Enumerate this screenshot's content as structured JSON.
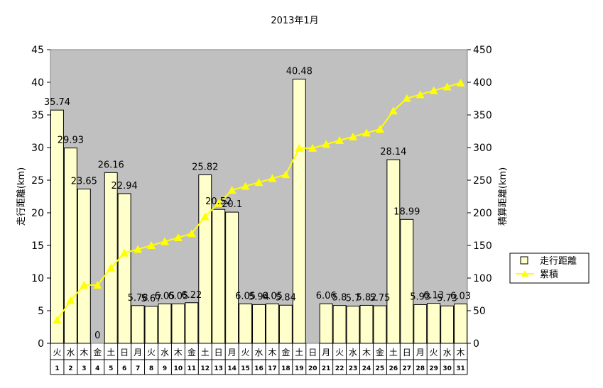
{
  "chart_data": {
    "type": "bar+line",
    "title": "2013年1月",
    "ylabel_left": "走行距離(km)",
    "ylabel_right": "積算距離(km)",
    "ylim_left": [
      0,
      45
    ],
    "ylim_right": [
      0,
      450
    ],
    "yticks_left": [
      "0",
      "5",
      "10",
      "15",
      "20",
      "25",
      "30",
      "35",
      "40",
      "45"
    ],
    "yticks_right": [
      "0",
      "50",
      "100",
      "150",
      "200",
      "250",
      "300",
      "350",
      "400",
      "450"
    ],
    "days": [
      "1",
      "2",
      "3",
      "4",
      "5",
      "6",
      "7",
      "8",
      "9",
      "10",
      "11",
      "12",
      "13",
      "14",
      "15",
      "16",
      "17",
      "18",
      "19",
      "20",
      "21",
      "22",
      "23",
      "24",
      "25",
      "26",
      "27",
      "28",
      "29",
      "30",
      "31"
    ],
    "weekdays": [
      "火",
      "水",
      "木",
      "金",
      "土",
      "日",
      "月",
      "火",
      "水",
      "木",
      "金",
      "土",
      "日",
      "月",
      "火",
      "水",
      "木",
      "金",
      "土",
      "日",
      "月",
      "火",
      "水",
      "木",
      "金",
      "土",
      "日",
      "月",
      "火",
      "水",
      "木"
    ],
    "series": [
      {
        "name": "走行距離",
        "kind": "bar",
        "color": "#ffffcc",
        "values": [
          35.74,
          29.93,
          23.65,
          0,
          26.16,
          22.94,
          5.78,
          5.67,
          6.05,
          6.05,
          6.22,
          25.82,
          20.52,
          20.1,
          6.05,
          5.94,
          6.05,
          5.84,
          40.48,
          null,
          6.06,
          5.8,
          5.7,
          5.82,
          5.75,
          28.14,
          18.99,
          5.93,
          6.13,
          5.73,
          6.03
        ],
        "labels": [
          "35.74",
          "29.93",
          "23.65",
          "0",
          "26.16",
          "22.94",
          "5.78",
          "5.67",
          "6.05",
          "6.05",
          "6.22",
          "25.82",
          "20.52",
          "20.1",
          "6.05",
          "5.94",
          "6.05",
          "5.84",
          "40.48",
          "",
          "6.06",
          "5.8",
          "5.7",
          "5.82",
          "5.75",
          "28.14",
          "18.99",
          "5.93",
          "6.13",
          "5.73",
          "6.03"
        ]
      },
      {
        "name": "累積",
        "kind": "line",
        "axis": "right",
        "color": "#ffff00",
        "values": [
          35.74,
          65.67,
          89.32,
          89.32,
          115.48,
          138.42,
          144.2,
          149.87,
          155.92,
          161.97,
          168.19,
          194.01,
          214.53,
          234.63,
          240.68,
          246.62,
          252.67,
          258.51,
          298.99,
          298.99,
          305.05,
          310.85,
          316.55,
          322.37,
          328.12,
          356.26,
          375.25,
          381.18,
          387.31,
          393.04,
          399.07
        ]
      }
    ],
    "legend_position": "right",
    "plot_background": "#c0c0c0"
  }
}
